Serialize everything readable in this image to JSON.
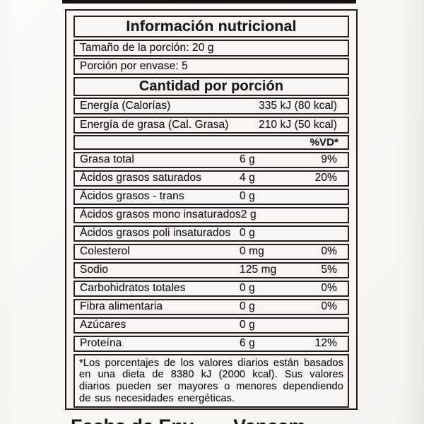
{
  "label": {
    "title": "Información nutricional",
    "serving_size": "Tamaño de la porción: 20 g",
    "servings_per_container": "Porción por envase: 5",
    "amount_header": "Cantidad por porción",
    "energy_rows": [
      {
        "label": "Energía (Calorías)",
        "value": "335 kJ (80 kcal)"
      },
      {
        "label": "Energía de grasa (Cal. Grasa)",
        "value": "210 kJ (50 kcal)"
      }
    ],
    "dv_header": "%VD*",
    "nutrient_rows": [
      {
        "name": "Grasa total",
        "amount": "6 g",
        "dv": "9%"
      },
      {
        "name": "Ácidos grasos saturados",
        "amount": "4 g",
        "dv": "20%"
      },
      {
        "name": "Ácidos grasos - trans",
        "amount": "0 g",
        "dv": ""
      },
      {
        "name": "Ácidos grasos mono insaturados",
        "amount": "2 g",
        "dv": ""
      },
      {
        "name": "Ácidos grasos poli insaturados",
        "amount": "0 g",
        "dv": ""
      },
      {
        "name": "Colesterol",
        "amount": "0 mg",
        "dv": "0%"
      },
      {
        "name": "Sodio",
        "amount": "125 mg",
        "dv": "5%"
      },
      {
        "name": "Carbohidratos totales",
        "amount": "0 g",
        "dv": "0%"
      },
      {
        "name": "Fibra alimentaria",
        "amount": "0 g",
        "dv": "0%"
      },
      {
        "name": "Azúcares",
        "amount": "0 g",
        "dv": ""
      },
      {
        "name": "Proteína",
        "amount": "6 g",
        "dv": "12%"
      }
    ],
    "footnote": "*Los porcentajes de los valores diarios están basados en una dieta de 8380 kJ (2000 kcal). Sus valores diarios pueden ser mayores o menores dependiendo de sus necesidades energéticas.",
    "clipped_footer_left": "Fecha de Env",
    "clipped_footer_right": "Vencem"
  },
  "colors": {
    "paper": "#f6f4f1",
    "ink": "#1d1b1b",
    "border": "#201d1c"
  }
}
